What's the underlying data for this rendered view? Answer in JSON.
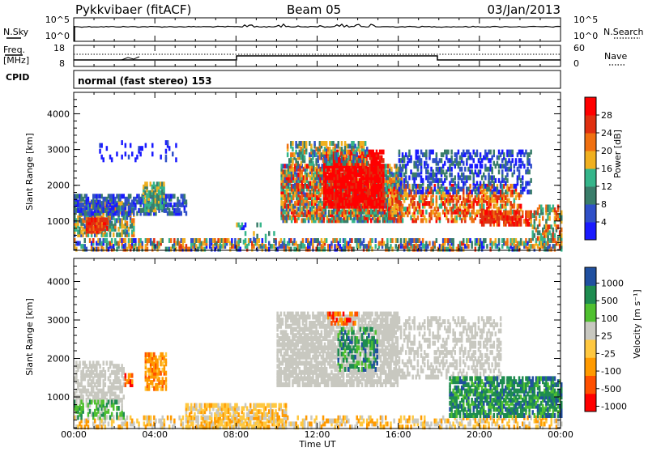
{
  "header": {
    "title": "Pykkvibaer (fitACF)",
    "beam": "Beam 05",
    "date": "03/Jan/2013"
  },
  "nsky_panel": {
    "left_label": "N.Sky",
    "left_ticks": [
      "10^5",
      "10^0"
    ],
    "right_label": "N.Search",
    "right_ticks": [
      "10^5",
      "10^0"
    ]
  },
  "freq_panel": {
    "left_label_top": "Freq.",
    "left_label_bottom": "[MHz]",
    "left_ticks": [
      "18",
      "8"
    ],
    "right_label": "Nave",
    "right_ticks": [
      "60",
      "0"
    ]
  },
  "cpid_panel": {
    "label": "CPID",
    "text": "normal (fast stereo) 153"
  },
  "colors": {
    "power": [
      "#1a1aff",
      "#3050c8",
      "#3a7d6a",
      "#35b58a",
      "#f0b020",
      "#f07010",
      "#e03010",
      "#ff0000"
    ],
    "velocity": [
      "#ff0000",
      "#ff5000",
      "#ff9a00",
      "#ffc840",
      "#c8c8c0",
      "#50c030",
      "#1e8c50",
      "#2050a0"
    ]
  },
  "chart_data": [
    {
      "type": "heatmap",
      "name": "power",
      "ylabel": "Slant Range [km]",
      "yticks": [
        "1000",
        "2000",
        "3000",
        "4000"
      ],
      "ylim": [
        180,
        4600
      ],
      "colorbar_label": "Power [dB]",
      "colorbar_ticks": [
        "4",
        "8",
        "12",
        "16",
        "20",
        "24",
        "28"
      ],
      "colorbar_range": [
        0,
        30
      ]
    },
    {
      "type": "heatmap",
      "name": "velocity",
      "ylabel": "Slant Range [km]",
      "yticks": [
        "1000",
        "2000",
        "3000",
        "4000"
      ],
      "ylim": [
        180,
        4600
      ],
      "colorbar_label": "Velocity [m s⁻¹]",
      "colorbar_ticks": [
        "1000",
        "500",
        "100",
        "25",
        "-25",
        "-100",
        "-500",
        "-1000"
      ],
      "xlabel": "Time UT",
      "xticks": [
        "00:00",
        "04:00",
        "08:00",
        "12:00",
        "16:00",
        "20:00",
        "00:00"
      ],
      "xlim_hours": [
        0,
        24
      ]
    }
  ]
}
